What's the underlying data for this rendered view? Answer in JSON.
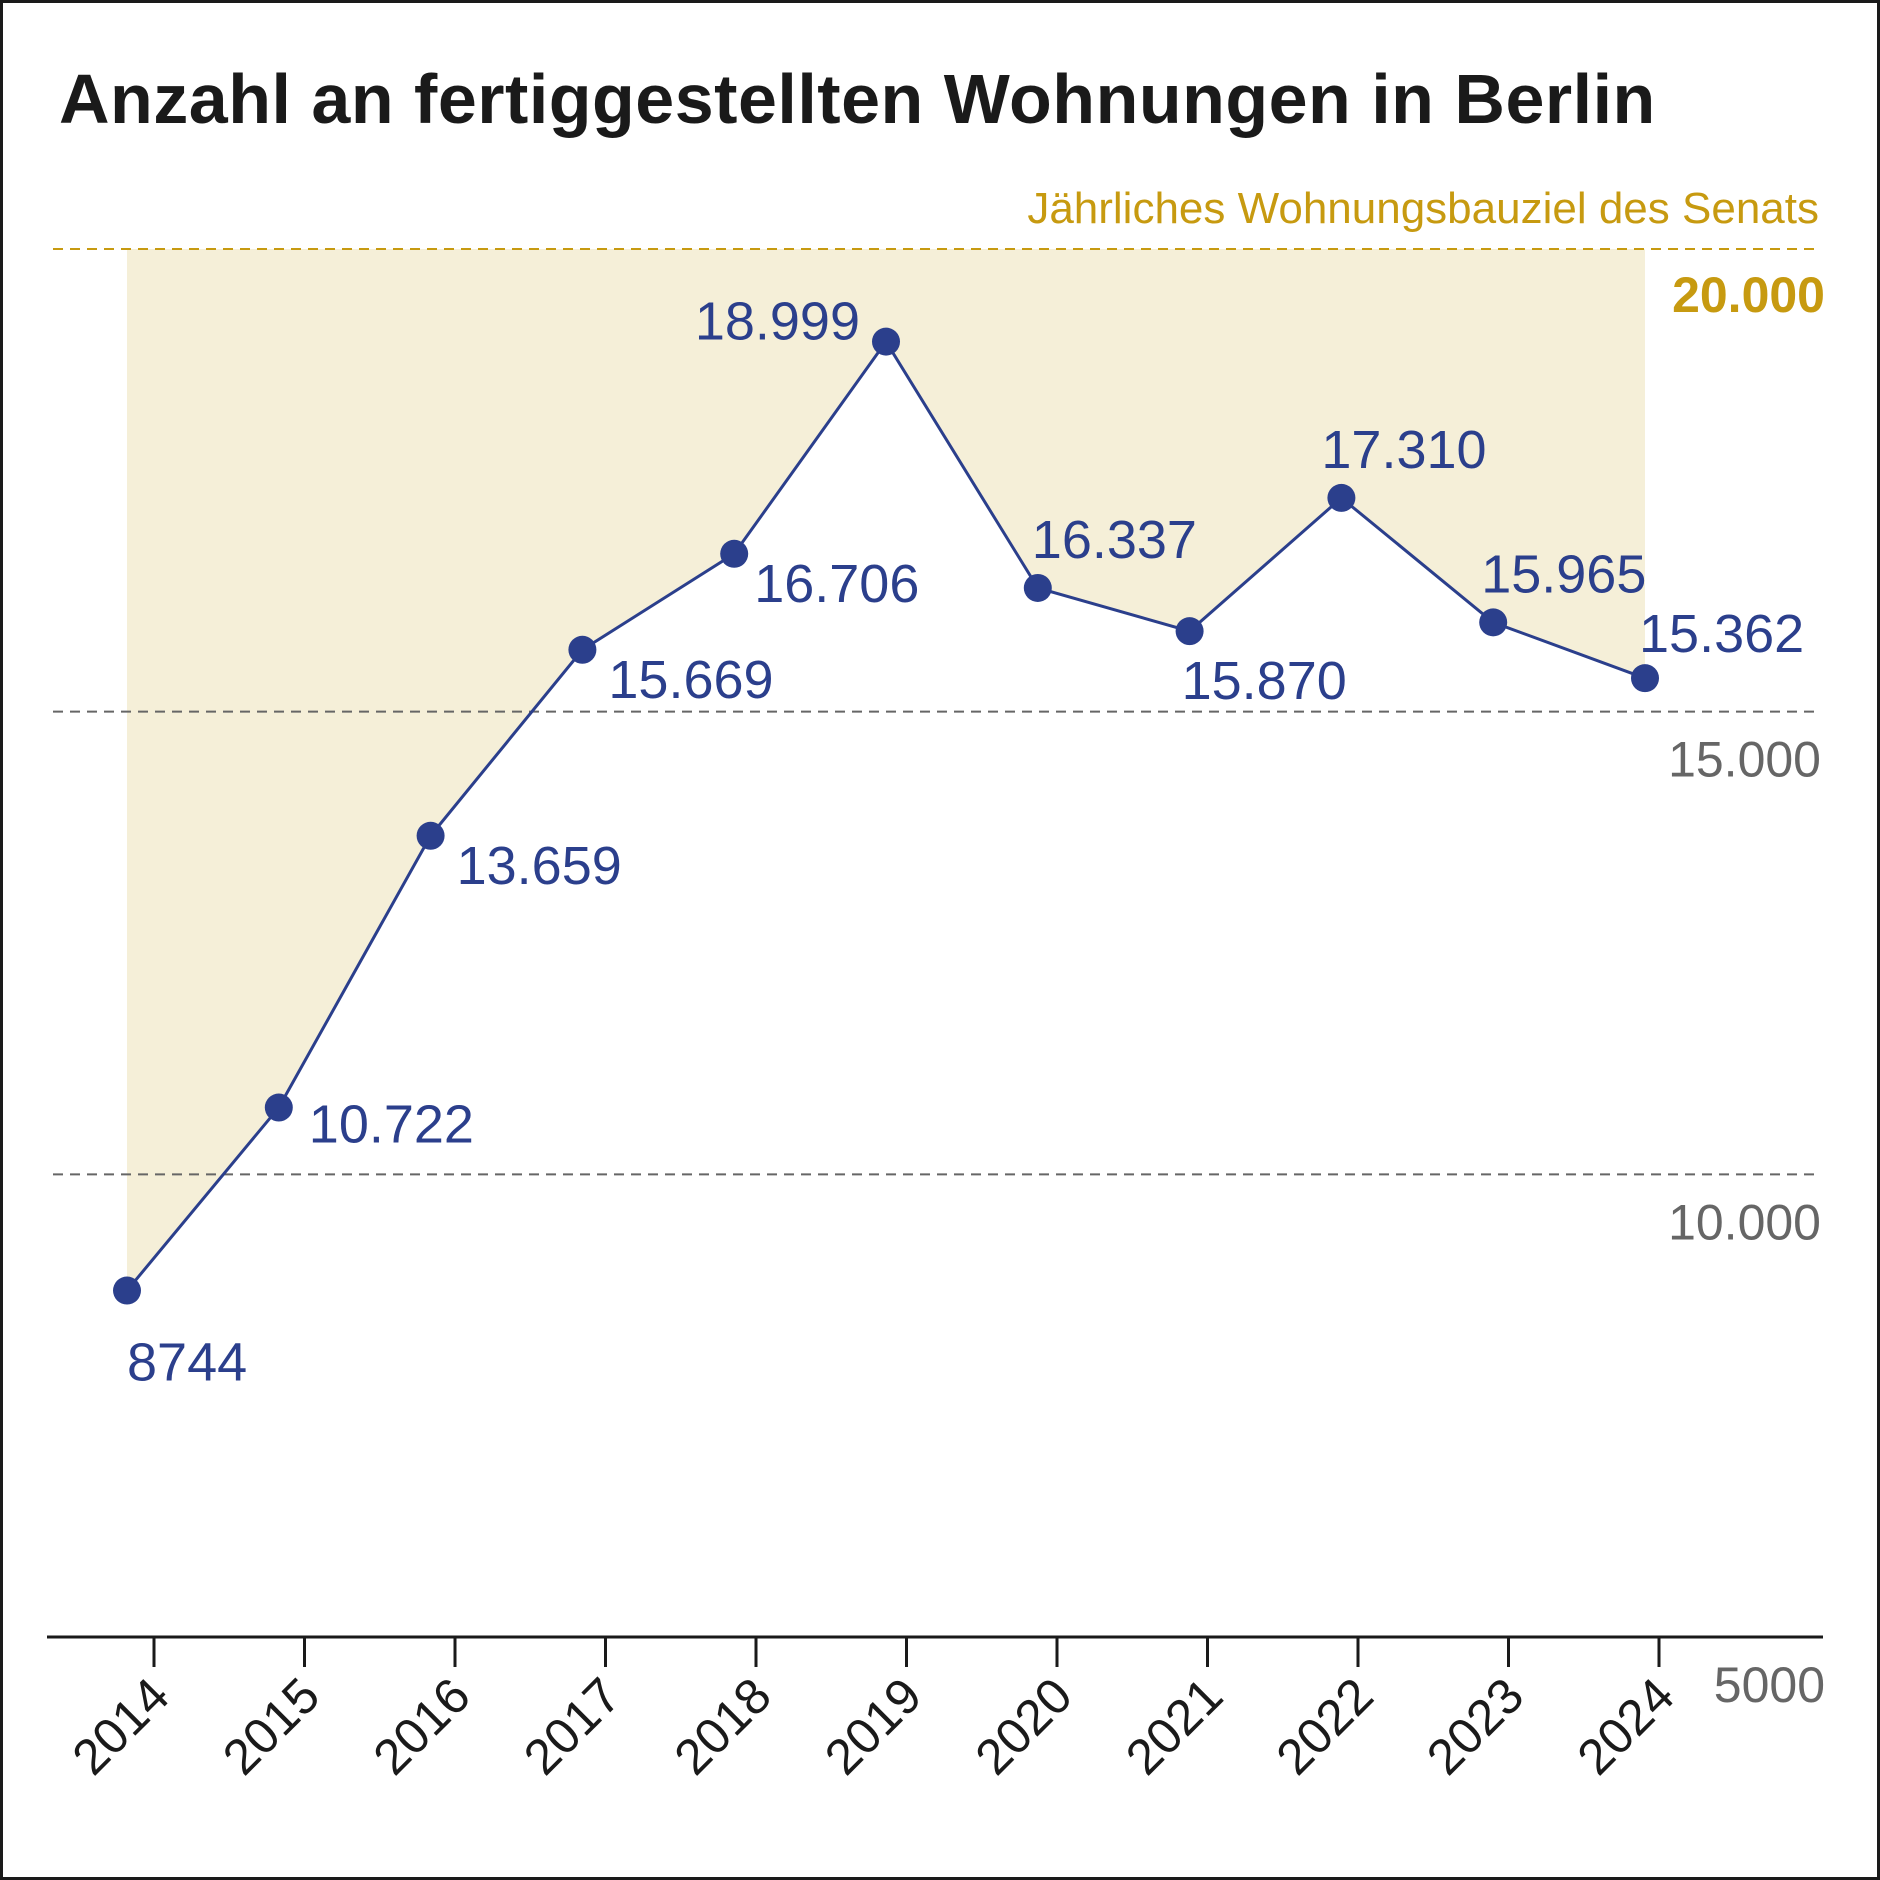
{
  "chart_data": {
    "type": "line",
    "title": "Anzahl an fertiggestellten Wohnungen in Berlin",
    "xlabel": "",
    "ylabel": "",
    "categories": [
      "2014",
      "2015",
      "2016",
      "2017",
      "2018",
      "2019",
      "2020",
      "2021",
      "2022",
      "2023",
      "2024"
    ],
    "series": [
      {
        "values": [
          8744,
          10722,
          13659,
          15669,
          16706,
          18999,
          16337,
          15870,
          17310,
          15965,
          15362
        ],
        "labels": [
          "8744",
          "10.722",
          "13.659",
          "15.669",
          "16.706",
          "18.999",
          "16.337",
          "15.870",
          "17.310",
          "15.965",
          "15.362"
        ]
      }
    ],
    "ylim": [
      5000,
      20000
    ],
    "grid": false,
    "reference_lines": [
      {
        "value": 20000,
        "label": "20.000",
        "caption": "Jährliches Wohnungsbauziel des Senats",
        "color": "#c79a10"
      },
      {
        "value": 15000,
        "label": "15.000",
        "color": "#666666"
      },
      {
        "value": 10000,
        "label": "10.000",
        "color": "#666666"
      }
    ],
    "axis_min_label": "5000",
    "colors": {
      "line": "#2b3f8c",
      "target_area": "#f5efd8",
      "target": "#c79a10",
      "reference": "#666666",
      "axis": "#1a1a1a"
    }
  }
}
